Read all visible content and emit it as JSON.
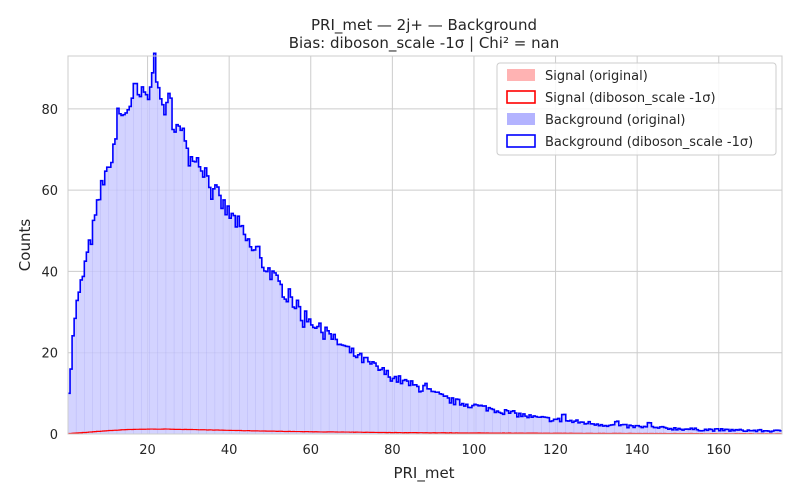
{
  "chart_data": {
    "type": "histogram",
    "title_line1": "PRI_met — 2j+ — Background",
    "title_line2": "Bias: diboson_scale -1σ | Chi² = nan",
    "xlabel": "PRI_met",
    "ylabel": "Counts",
    "xlim": [
      0.5,
      175.5
    ],
    "ylim": [
      0,
      93
    ],
    "x_ticks": [
      20,
      40,
      60,
      80,
      100,
      120,
      140,
      160
    ],
    "y_ticks": [
      0,
      20,
      40,
      60,
      80
    ],
    "grid": true,
    "legend_position": "top-right",
    "legend": [
      {
        "label": "Signal (original)",
        "style": "fill",
        "color": "#ffb3b3"
      },
      {
        "label": "Signal (diboson_scale -1σ)",
        "style": "outline",
        "color": "#ff0000"
      },
      {
        "label": "Background (original)",
        "style": "fill",
        "color": "#b3b3ff"
      },
      {
        "label": "Background (diboson_scale -1σ)",
        "style": "outline",
        "color": "#0000ff"
      }
    ],
    "background_curve": [
      [
        0.5,
        9
      ],
      [
        1,
        13
      ],
      [
        1.5,
        20
      ],
      [
        2,
        27
      ],
      [
        2.5,
        31
      ],
      [
        3,
        33
      ],
      [
        4,
        38
      ],
      [
        5,
        43
      ],
      [
        6,
        47
      ],
      [
        7,
        52
      ],
      [
        8,
        57
      ],
      [
        9,
        62
      ],
      [
        10,
        66
      ],
      [
        11,
        68
      ],
      [
        12,
        72
      ],
      [
        13,
        76
      ],
      [
        14,
        78
      ],
      [
        15,
        80
      ],
      [
        16,
        82
      ],
      [
        17,
        82
      ],
      [
        18,
        83
      ],
      [
        19,
        83
      ],
      [
        20,
        83
      ],
      [
        21,
        84
      ],
      [
        22,
        84
      ],
      [
        23,
        82
      ],
      [
        24,
        81
      ],
      [
        25,
        79
      ],
      [
        26,
        78
      ],
      [
        27,
        76
      ],
      [
        28,
        74
      ],
      [
        30,
        72
      ],
      [
        32,
        68
      ],
      [
        34,
        65
      ],
      [
        36,
        61
      ],
      [
        38,
        57
      ],
      [
        40,
        54
      ],
      [
        42,
        52
      ],
      [
        44,
        48
      ],
      [
        46,
        45
      ],
      [
        48,
        42
      ],
      [
        50,
        40
      ],
      [
        52,
        37
      ],
      [
        55,
        33
      ],
      [
        58,
        30
      ],
      [
        60,
        28
      ],
      [
        63,
        25
      ],
      [
        66,
        23
      ],
      [
        70,
        20
      ],
      [
        75,
        17
      ],
      [
        80,
        14
      ],
      [
        85,
        12
      ],
      [
        90,
        10
      ],
      [
        95,
        8
      ],
      [
        100,
        7
      ],
      [
        105,
        6
      ],
      [
        110,
        5
      ],
      [
        115,
        4
      ],
      [
        120,
        3.5
      ],
      [
        125,
        3
      ],
      [
        130,
        2.5
      ],
      [
        135,
        2
      ],
      [
        140,
        1.8
      ],
      [
        145,
        1.5
      ],
      [
        150,
        1.3
      ],
      [
        155,
        1.1
      ],
      [
        160,
        1
      ],
      [
        165,
        0.9
      ],
      [
        170,
        0.8
      ],
      [
        175.5,
        0.7
      ]
    ],
    "signal_curve": [
      [
        0.5,
        0.1
      ],
      [
        5,
        0.4
      ],
      [
        10,
        0.8
      ],
      [
        15,
        1.1
      ],
      [
        20,
        1.2
      ],
      [
        25,
        1.2
      ],
      [
        30,
        1.1
      ],
      [
        40,
        0.9
      ],
      [
        50,
        0.7
      ],
      [
        60,
        0.55
      ],
      [
        70,
        0.45
      ],
      [
        80,
        0.35
      ],
      [
        100,
        0.25
      ],
      [
        120,
        0.18
      ],
      [
        140,
        0.12
      ],
      [
        160,
        0.08
      ],
      [
        175.5,
        0.06
      ]
    ],
    "bin_width": 0.5,
    "spikes": [
      [
        21.5,
        7
      ],
      [
        22,
        5
      ],
      [
        10.5,
        -3
      ],
      [
        13,
        3
      ],
      [
        17,
        2
      ],
      [
        30.5,
        -3
      ],
      [
        25.5,
        3
      ],
      [
        36,
        -2
      ],
      [
        47,
        2
      ],
      [
        55,
        2
      ],
      [
        58,
        -2
      ],
      [
        64,
        2
      ],
      [
        88,
        1.5
      ],
      [
        122,
        1.5
      ],
      [
        135,
        1
      ],
      [
        143,
        1
      ]
    ],
    "colors": {
      "bg_fill": "#c8c8ff",
      "bg_line": "#0000ff",
      "sig_line": "#ff0000",
      "grid": "#cccccc"
    }
  }
}
